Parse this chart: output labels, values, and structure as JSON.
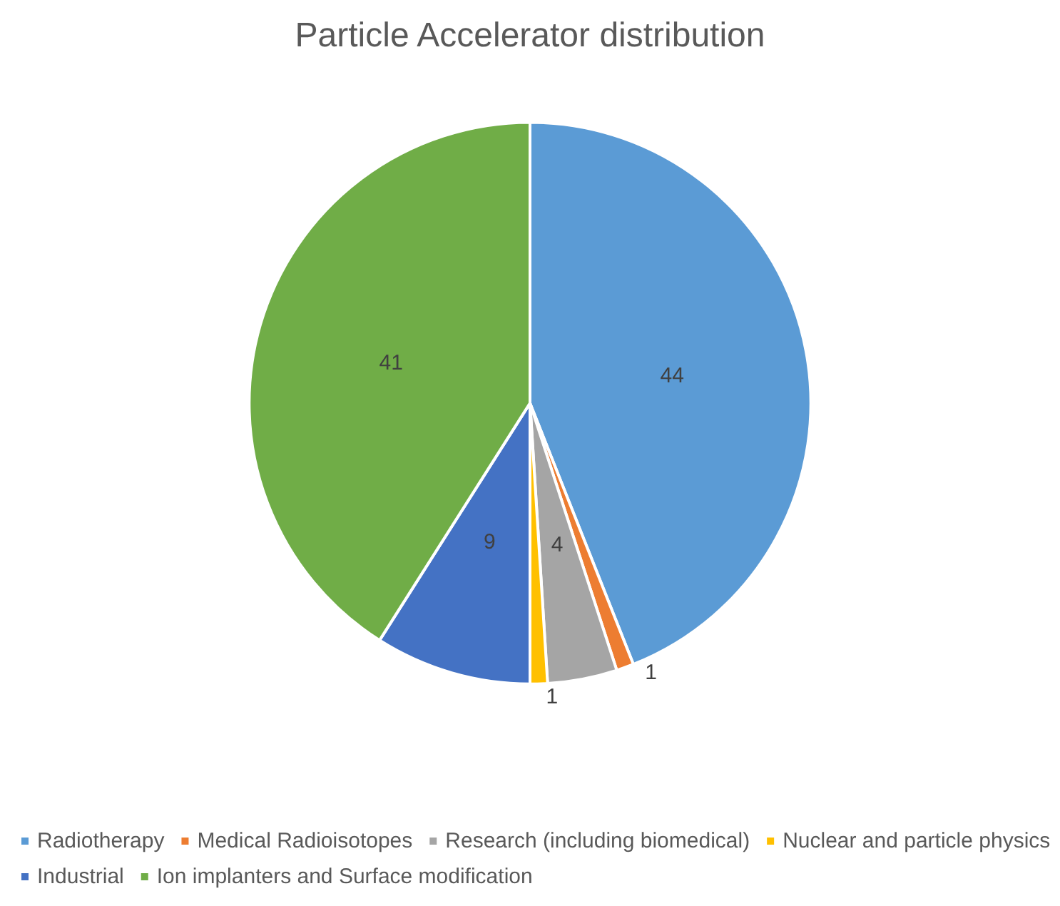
{
  "chart_data": {
    "type": "pie",
    "title": "Particle Accelerator distribution",
    "categories": [
      "Radiotherapy",
      "Medical Radioisotopes",
      "Research (including biomedical)",
      "Nuclear and particle physics",
      "Industrial",
      "Ion implanters and Surface modification"
    ],
    "values": [
      44,
      1,
      4,
      1,
      9,
      41
    ],
    "colors": [
      "#5b9bd5",
      "#ed7d31",
      "#a5a5a5",
      "#ffc000",
      "#4472c4",
      "#70ad47"
    ],
    "data_labels": true,
    "legend": "bottom"
  }
}
